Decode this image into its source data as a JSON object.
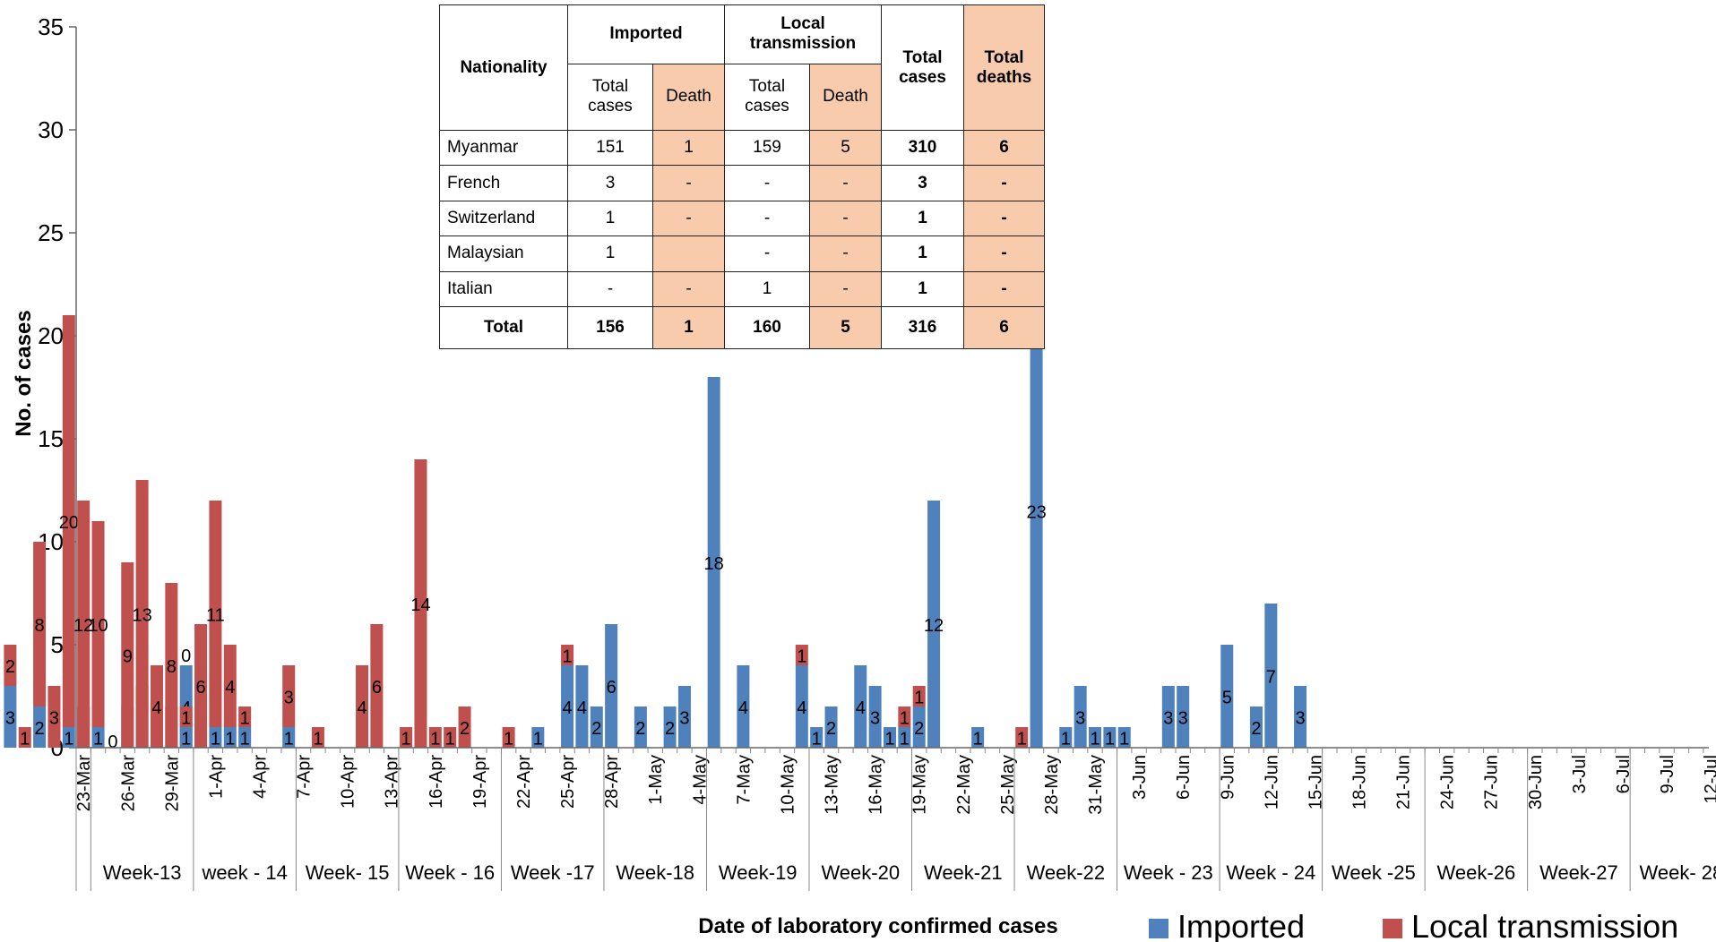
{
  "chart_data": {
    "type": "bar",
    "stacked": true,
    "xlabel": "Date of laboratory confirmed cases",
    "ylabel": "No. of cases",
    "ylim": [
      0,
      35
    ],
    "yticks": [
      0,
      5,
      10,
      15,
      20,
      25,
      30,
      35
    ],
    "grid": false,
    "legend_position": "bottom-right",
    "series": [
      {
        "name": "Imported",
        "color": "#4f81bd"
      },
      {
        "name": "Local transmission",
        "color": "#c0504d"
      }
    ],
    "date_ticks": [
      "23-Mar",
      "26-Mar",
      "29-Mar",
      "1-Apr",
      "4-Apr",
      "7-Apr",
      "10-Apr",
      "13-Apr",
      "16-Apr",
      "19-Apr",
      "22-Apr",
      "25-Apr",
      "28-Apr",
      "1-May",
      "4-May",
      "7-May",
      "10-May",
      "13-May",
      "16-May",
      "19-May",
      "22-May",
      "25-May",
      "28-May",
      "31-May",
      "3-Jun",
      "6-Jun",
      "9-Jun",
      "12-Jun",
      "15-Jun",
      "18-Jun",
      "21-Jun",
      "24-Jun",
      "27-Jun",
      "30-Jun",
      "3-Jul",
      "6-Jul",
      "9-Jul",
      "12-Jul"
    ],
    "weeks": [
      "Week-13",
      "week - 14",
      "Week- 15",
      "Week - 16",
      "Week -17",
      "Week-18",
      "Week-19",
      "Week-20",
      "Week-21",
      "Week-22",
      "Week - 23",
      "Week - 24",
      "Week -25",
      "Week-26",
      "Week-27",
      "Week- 28"
    ],
    "bars": [
      {
        "date": "23-Mar",
        "imported": 2,
        "local": 0,
        "labels": [
          "2"
        ]
      },
      {
        "date": "24-Mar",
        "imported": 1,
        "local": 0,
        "labels": [
          "1"
        ]
      },
      {
        "date": "26-Mar",
        "imported": 2,
        "local": 0,
        "labels": [
          "2"
        ]
      },
      {
        "date": "27-Mar",
        "imported": 2,
        "local": 1,
        "labels": [
          "2",
          "1"
        ]
      },
      {
        "date": "29-Mar",
        "imported": 1,
        "local": 1,
        "labels": [
          "1",
          "1"
        ]
      },
      {
        "date": "30-Mar",
        "imported": 4,
        "local": 0,
        "labels": [
          "4",
          "0"
        ]
      },
      {
        "date": "31-Mar",
        "imported": 0,
        "local": 1,
        "labels": [
          "1"
        ]
      },
      {
        "date": "1-Apr",
        "imported": 0,
        "local": 1,
        "labels": [
          "1"
        ]
      },
      {
        "date": "2-Apr",
        "imported": 0,
        "local": 4,
        "labels": [
          "4"
        ]
      },
      {
        "date": "4-Apr",
        "imported": 1,
        "local": 0,
        "labels": [
          "1"
        ]
      },
      {
        "date": "6-Apr",
        "imported": 1,
        "local": 0,
        "labels": [
          "1"
        ]
      },
      {
        "date": "9-Apr",
        "imported": 3,
        "local": 2,
        "labels": [
          "3",
          "2"
        ]
      },
      {
        "date": "10-Apr",
        "imported": 0,
        "local": 1,
        "labels": [
          "1"
        ]
      },
      {
        "date": "11-Apr",
        "imported": 2,
        "local": 8,
        "labels": [
          "2",
          "8"
        ]
      },
      {
        "date": "12-Apr",
        "imported": 0,
        "local": 3,
        "labels": [
          "3"
        ]
      },
      {
        "date": "13-Apr",
        "imported": 1,
        "local": 20,
        "labels": [
          "1",
          "20"
        ]
      },
      {
        "date": "14-Apr",
        "imported": 0,
        "local": 12,
        "labels": [
          "12"
        ]
      },
      {
        "date": "15-Apr",
        "imported": 1,
        "local": 10,
        "labels": [
          "1",
          "10"
        ]
      },
      {
        "date": "16-Apr",
        "imported": 0,
        "local": 0,
        "labels": [
          "0"
        ]
      },
      {
        "date": "17-Apr",
        "imported": 0,
        "local": 9,
        "labels": [
          "9"
        ]
      },
      {
        "date": "18-Apr",
        "imported": 0,
        "local": 13,
        "labels": [
          "13"
        ]
      },
      {
        "date": "19-Apr",
        "imported": 0,
        "local": 4,
        "labels": [
          "4"
        ]
      },
      {
        "date": "20-Apr",
        "imported": 0,
        "local": 8,
        "labels": [
          "8"
        ]
      },
      {
        "date": "21-Apr",
        "imported": 1,
        "local": 1,
        "labels": [
          "1",
          "1"
        ]
      },
      {
        "date": "22-Apr",
        "imported": 0,
        "local": 6,
        "labels": [
          "6"
        ]
      },
      {
        "date": "23-Apr",
        "imported": 1,
        "local": 11,
        "labels": [
          "1",
          "11"
        ]
      },
      {
        "date": "24-Apr",
        "imported": 1,
        "local": 4,
        "labels": [
          "1",
          "4"
        ]
      },
      {
        "date": "25-Apr",
        "imported": 1,
        "local": 1,
        "labels": [
          "1",
          "1"
        ]
      },
      {
        "date": "28-Apr",
        "imported": 1,
        "local": 3,
        "labels": [
          "1",
          "3"
        ]
      },
      {
        "date": "30-Apr",
        "imported": 0,
        "local": 1,
        "labels": [
          "1"
        ]
      },
      {
        "date": "3-May",
        "imported": 0,
        "local": 4,
        "labels": [
          "4"
        ]
      },
      {
        "date": "4-May",
        "imported": 0,
        "local": 6,
        "labels": [
          "6"
        ]
      },
      {
        "date": "6-May",
        "imported": 0,
        "local": 1,
        "labels": [
          "1"
        ]
      },
      {
        "date": "7-May",
        "imported": 0,
        "local": 14,
        "labels": [
          "14"
        ]
      },
      {
        "date": "8-May",
        "imported": 0,
        "local": 1,
        "labels": [
          "1"
        ]
      },
      {
        "date": "9-May",
        "imported": 0,
        "local": 1,
        "labels": [
          "1"
        ]
      },
      {
        "date": "10-May",
        "imported": 0,
        "local": 2,
        "labels": [
          "2"
        ]
      },
      {
        "date": "13-May",
        "imported": 0,
        "local": 1,
        "labels": [
          "1"
        ]
      },
      {
        "date": "15-May",
        "imported": 1,
        "local": 0,
        "labels": [
          "1"
        ]
      },
      {
        "date": "17-May",
        "imported": 4,
        "local": 1,
        "labels": [
          "4",
          "1"
        ]
      },
      {
        "date": "18-May",
        "imported": 4,
        "local": 0,
        "labels": [
          "4"
        ]
      },
      {
        "date": "19-May",
        "imported": 2,
        "local": 0,
        "labels": [
          "2"
        ]
      },
      {
        "date": "20-May",
        "imported": 6,
        "local": 0,
        "labels": [
          "6"
        ]
      },
      {
        "date": "22-May",
        "imported": 2,
        "local": 0,
        "labels": [
          "2"
        ]
      },
      {
        "date": "24-May",
        "imported": 2,
        "local": 0,
        "labels": [
          "2"
        ]
      },
      {
        "date": "25-May",
        "imported": 3,
        "local": 0,
        "labels": [
          "3"
        ]
      },
      {
        "date": "27-May",
        "imported": 18,
        "local": 0,
        "labels": [
          "18"
        ]
      },
      {
        "date": "29-May",
        "imported": 4,
        "local": 0,
        "labels": [
          "4"
        ]
      },
      {
        "date": "2-Jun",
        "imported": 4,
        "local": 1,
        "labels": [
          "4",
          "1"
        ]
      },
      {
        "date": "3-Jun",
        "imported": 1,
        "local": 0,
        "labels": [
          "1"
        ]
      },
      {
        "date": "4-Jun",
        "imported": 2,
        "local": 0,
        "labels": [
          "2"
        ]
      },
      {
        "date": "6-Jun",
        "imported": 4,
        "local": 0,
        "labels": [
          "4"
        ]
      },
      {
        "date": "7-Jun",
        "imported": 3,
        "local": 0,
        "labels": [
          "3"
        ]
      },
      {
        "date": "8-Jun",
        "imported": 1,
        "local": 0,
        "labels": [
          "1"
        ]
      },
      {
        "date": "9-Jun",
        "imported": 1,
        "local": 1,
        "labels": [
          "1",
          "1"
        ]
      },
      {
        "date": "10-Jun",
        "imported": 2,
        "local": 1,
        "labels": [
          "2",
          "1"
        ]
      },
      {
        "date": "11-Jun",
        "imported": 12,
        "local": 0,
        "labels": [
          "12"
        ]
      },
      {
        "date": "14-Jun",
        "imported": 1,
        "local": 0,
        "labels": [
          "1"
        ]
      },
      {
        "date": "17-Jun",
        "imported": 0,
        "local": 1,
        "labels": [
          "1"
        ]
      },
      {
        "date": "18-Jun",
        "imported": 23,
        "local": 0,
        "labels": [
          "23"
        ]
      },
      {
        "date": "20-Jun",
        "imported": 1,
        "local": 0,
        "labels": [
          "1"
        ]
      },
      {
        "date": "21-Jun",
        "imported": 3,
        "local": 0,
        "labels": [
          "3"
        ]
      },
      {
        "date": "22-Jun",
        "imported": 1,
        "local": 0,
        "labels": [
          "1"
        ]
      },
      {
        "date": "23-Jun",
        "imported": 1,
        "local": 0,
        "labels": [
          "1"
        ]
      },
      {
        "date": "24-Jun",
        "imported": 1,
        "local": 0,
        "labels": [
          "1"
        ]
      },
      {
        "date": "27-Jun",
        "imported": 3,
        "local": 0,
        "labels": [
          "3"
        ]
      },
      {
        "date": "28-Jun",
        "imported": 3,
        "local": 0,
        "labels": [
          "3"
        ]
      },
      {
        "date": "1-Jul",
        "imported": 5,
        "local": 0,
        "labels": [
          "5"
        ]
      },
      {
        "date": "3-Jul",
        "imported": 2,
        "local": 0,
        "labels": [
          "2"
        ]
      },
      {
        "date": "4-Jul",
        "imported": 7,
        "local": 0,
        "labels": [
          "7"
        ]
      },
      {
        "date": "6-Jul",
        "imported": 3,
        "local": 0,
        "labels": [
          "3"
        ]
      }
    ]
  },
  "table": {
    "header": {
      "nationality": "Nationality",
      "imported": "Imported",
      "local": "Local transmission",
      "total_cases": "Total cases",
      "total_deaths": "Total deaths",
      "sub_total_cases": "Total cases",
      "sub_death": "Death"
    },
    "rows": [
      {
        "nationality": "Myanmar",
        "imp_cases": "151",
        "imp_death": "1",
        "loc_cases": "159",
        "loc_death": "5",
        "total_cases": "310",
        "total_deaths": "6"
      },
      {
        "nationality": "French",
        "imp_cases": "3",
        "imp_death": "-",
        "loc_cases": "-",
        "loc_death": "-",
        "total_cases": "3",
        "total_deaths": "-"
      },
      {
        "nationality": "Switzerland",
        "imp_cases": "1",
        "imp_death": "-",
        "loc_cases": "-",
        "loc_death": "-",
        "total_cases": "1",
        "total_deaths": "-"
      },
      {
        "nationality": "Malaysian",
        "imp_cases": "1",
        "imp_death": "",
        "loc_cases": "-",
        "loc_death": "-",
        "total_cases": "1",
        "total_deaths": "-"
      },
      {
        "nationality": "Italian",
        "imp_cases": "-",
        "imp_death": "-",
        "loc_cases": "1",
        "loc_death": "-",
        "total_cases": "1",
        "total_deaths": "-"
      }
    ],
    "total": {
      "nationality": "Total",
      "imp_cases": "156",
      "imp_death": "1",
      "loc_cases": "160",
      "loc_death": "5",
      "total_cases": "316",
      "total_deaths": "6"
    }
  }
}
